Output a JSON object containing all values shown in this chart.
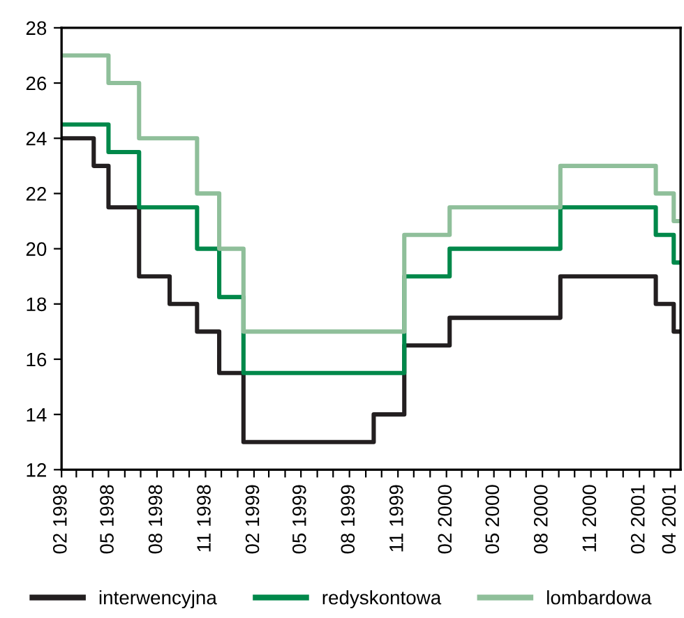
{
  "chart_data": {
    "type": "step",
    "legend": "bottom",
    "grid": false,
    "line_style": "solid",
    "marker": "none",
    "ylim": [
      12,
      28
    ],
    "yticks": [
      12,
      14,
      16,
      18,
      20,
      22,
      24,
      26,
      28
    ],
    "xlim": [
      "1998-02-01",
      "2001-04-20"
    ],
    "xticks": [
      {
        "value": "1998-02-01",
        "label": "02 1998"
      },
      {
        "value": "1998-03-01",
        "label": null
      },
      {
        "value": "1998-04-01",
        "label": null
      },
      {
        "value": "1998-05-01",
        "label": "05 1998"
      },
      {
        "value": "1998-06-01",
        "label": null
      },
      {
        "value": "1998-07-01",
        "label": null
      },
      {
        "value": "1998-08-01",
        "label": "08 1998"
      },
      {
        "value": "1998-09-01",
        "label": null
      },
      {
        "value": "1998-10-01",
        "label": null
      },
      {
        "value": "1998-11-01",
        "label": "11 1998"
      },
      {
        "value": "1998-12-01",
        "label": null
      },
      {
        "value": "1999-01-01",
        "label": null
      },
      {
        "value": "1999-02-01",
        "label": "02 1999"
      },
      {
        "value": "1999-03-01",
        "label": null
      },
      {
        "value": "1999-04-01",
        "label": null
      },
      {
        "value": "1999-05-01",
        "label": "05 1999"
      },
      {
        "value": "1999-06-01",
        "label": null
      },
      {
        "value": "1999-07-01",
        "label": null
      },
      {
        "value": "1999-08-01",
        "label": "08 1999"
      },
      {
        "value": "1999-09-01",
        "label": null
      },
      {
        "value": "1999-10-01",
        "label": null
      },
      {
        "value": "1999-11-01",
        "label": "11 1999"
      },
      {
        "value": "1999-12-01",
        "label": null
      },
      {
        "value": "2000-01-01",
        "label": null
      },
      {
        "value": "2000-02-01",
        "label": "02 2000"
      },
      {
        "value": "2000-03-01",
        "label": null
      },
      {
        "value": "2000-04-01",
        "label": null
      },
      {
        "value": "2000-05-01",
        "label": "05 2000"
      },
      {
        "value": "2000-06-01",
        "label": null
      },
      {
        "value": "2000-07-01",
        "label": null
      },
      {
        "value": "2000-08-01",
        "label": "08 2000"
      },
      {
        "value": "2000-09-01",
        "label": null
      },
      {
        "value": "2000-10-01",
        "label": null
      },
      {
        "value": "2000-11-01",
        "label": "11 2000"
      },
      {
        "value": "2000-12-01",
        "label": null
      },
      {
        "value": "2001-01-01",
        "label": null
      },
      {
        "value": "2001-02-01",
        "label": "02 2001"
      },
      {
        "value": "2001-03-01",
        "label": null
      },
      {
        "value": "2001-04-01",
        "label": "04 2001"
      }
    ],
    "series": [
      {
        "name": "interwencyjna",
        "color": "#231f20",
        "x": [
          "1998-02-01",
          "1998-04-03",
          "1998-05-01",
          "1998-06-28",
          "1998-08-25",
          "1998-10-16",
          "1998-11-27",
          "1999-01-12",
          "1999-09-16",
          "1999-11-13",
          "2000-02-07",
          "2000-09-04",
          "2001-03-04",
          "2001-04-07",
          "2001-04-20"
        ],
        "values": [
          24,
          23,
          21.5,
          19,
          18,
          17,
          15.5,
          13,
          14,
          16.5,
          17.5,
          19,
          18,
          17,
          17
        ]
      },
      {
        "name": "redyskontowa",
        "color": "#00884a",
        "x": [
          "1998-02-01",
          "1998-05-01",
          "1998-06-28",
          "1998-10-16",
          "1998-11-27",
          "1999-01-12",
          "1999-11-13",
          "2000-02-07",
          "2000-09-04",
          "2001-03-04",
          "2001-04-07",
          "2001-04-20"
        ],
        "values": [
          24.5,
          23.5,
          21.5,
          20,
          18.25,
          15.5,
          19,
          20,
          21.5,
          20.5,
          19.5,
          19.5
        ]
      },
      {
        "name": "lombardowa",
        "color": "#8fbf9a",
        "x": [
          "1998-02-01",
          "1998-05-01",
          "1998-06-28",
          "1998-10-16",
          "1998-11-27",
          "1999-01-12",
          "1999-11-13",
          "2000-02-07",
          "2000-09-04",
          "2001-03-04",
          "2001-04-07",
          "2001-04-20"
        ],
        "values": [
          27,
          26,
          24,
          22,
          20,
          17,
          20.5,
          21.5,
          23,
          22,
          21,
          21
        ]
      }
    ]
  }
}
